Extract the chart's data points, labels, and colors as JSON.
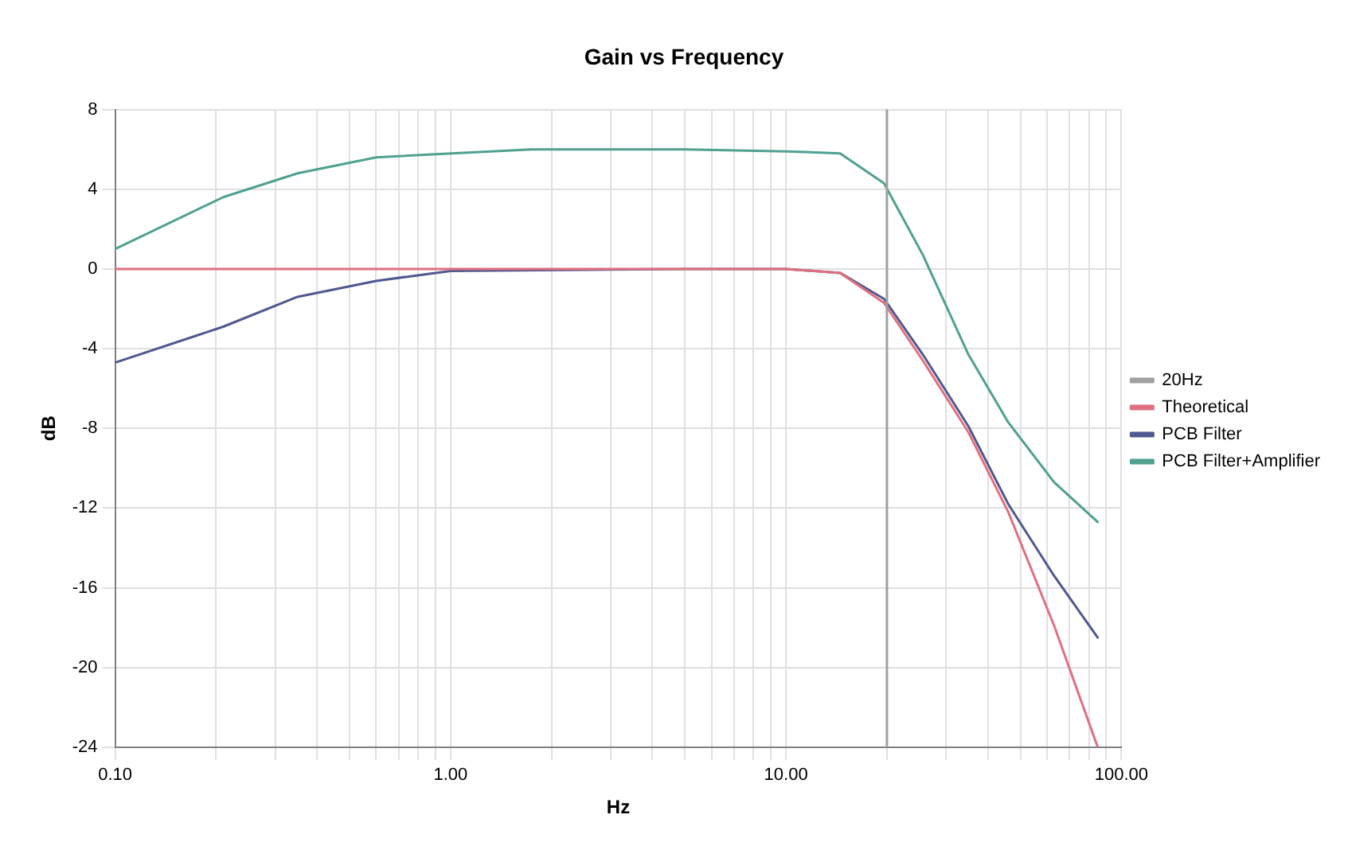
{
  "chart_data": {
    "type": "line",
    "title": "Gain vs Frequency",
    "xlabel": "Hz",
    "ylabel": "dB",
    "log": "x",
    "xlim": [
      0.1,
      100
    ],
    "xticks": [
      {
        "value": 0.1,
        "label": "0.10"
      },
      {
        "value": 0.2,
        "label": null
      },
      {
        "value": 0.3,
        "label": null
      },
      {
        "value": 0.4,
        "label": null
      },
      {
        "value": 0.5,
        "label": null
      },
      {
        "value": 0.6,
        "label": null
      },
      {
        "value": 0.7,
        "label": null
      },
      {
        "value": 0.8,
        "label": null
      },
      {
        "value": 0.9,
        "label": null
      },
      {
        "value": 1,
        "label": "1.00"
      },
      {
        "value": 2,
        "label": null
      },
      {
        "value": 3,
        "label": null
      },
      {
        "value": 4,
        "label": null
      },
      {
        "value": 5,
        "label": null
      },
      {
        "value": 6,
        "label": null
      },
      {
        "value": 7,
        "label": null
      },
      {
        "value": 8,
        "label": null
      },
      {
        "value": 9,
        "label": null
      },
      {
        "value": 10,
        "label": "10.00"
      },
      {
        "value": 20,
        "label": null
      },
      {
        "value": 30,
        "label": null
      },
      {
        "value": 40,
        "label": null
      },
      {
        "value": 50,
        "label": null
      },
      {
        "value": 60,
        "label": null
      },
      {
        "value": 70,
        "label": null
      },
      {
        "value": 80,
        "label": null
      },
      {
        "value": 90,
        "label": null
      },
      {
        "value": 100,
        "label": "100.00"
      }
    ],
    "ylim": [
      -24,
      8
    ],
    "yticks": [
      -24,
      -20,
      -16,
      -12,
      -8,
      -4,
      0,
      4,
      8
    ],
    "grid": true,
    "legend": "right",
    "marker": "none",
    "line_style": "solid",
    "series": [
      {
        "name": "20Hz",
        "color": "#a0a0a0",
        "x": [
          20,
          20
        ],
        "values": [
          -24,
          8
        ]
      },
      {
        "name": "Theoretical",
        "color": "#e07080",
        "x": [
          0.1,
          0.6,
          1,
          5,
          10,
          14.5,
          19.6,
          25.6,
          35,
          46,
          63,
          85
        ],
        "values": [
          0,
          0,
          0,
          0,
          0,
          -0.2,
          -1.7,
          -4.6,
          -8.2,
          -12.2,
          -17.9,
          -24
        ]
      },
      {
        "name": "PCB Filter",
        "color": "#505890",
        "x": [
          0.1,
          0.21,
          0.35,
          0.6,
          1,
          5,
          10,
          14.5,
          19.6,
          25.6,
          35,
          46,
          63,
          85
        ],
        "values": [
          -4.7,
          -2.9,
          -1.4,
          -0.6,
          -0.1,
          0,
          0,
          -0.2,
          -1.5,
          -4.3,
          -7.9,
          -11.8,
          -15.4,
          -18.5
        ]
      },
      {
        "name": "PCB Filter+Amplifier",
        "color": "#50a090",
        "x": [
          0.1,
          0.21,
          0.35,
          0.6,
          1.74,
          5,
          10,
          14.5,
          19.6,
          25.6,
          35,
          46,
          63,
          85
        ],
        "values": [
          1,
          3.6,
          4.8,
          5.6,
          6,
          6,
          5.9,
          5.8,
          4.3,
          0.7,
          -4.3,
          -7.7,
          -10.7,
          -12.7
        ]
      }
    ]
  }
}
